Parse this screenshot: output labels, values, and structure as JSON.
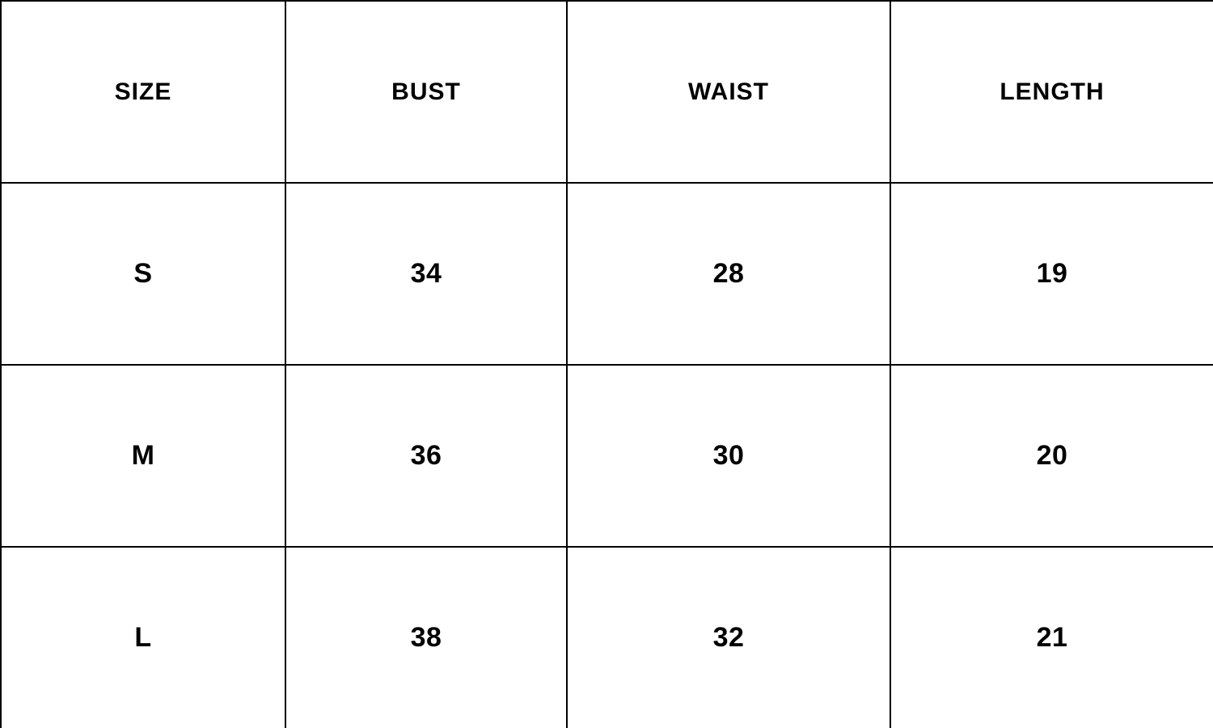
{
  "colors": {
    "background": "#ffffff",
    "border": "#000000",
    "text": "#000000"
  },
  "size_chart": {
    "columns": [
      "SIZE",
      "BUST",
      "WAIST",
      "LENGTH"
    ],
    "rows": [
      {
        "size": "S",
        "bust": "34",
        "waist": "28",
        "length": "19"
      },
      {
        "size": "M",
        "bust": "36",
        "waist": "30",
        "length": "20"
      },
      {
        "size": "L",
        "bust": "38",
        "waist": "32",
        "length": "21"
      }
    ]
  }
}
